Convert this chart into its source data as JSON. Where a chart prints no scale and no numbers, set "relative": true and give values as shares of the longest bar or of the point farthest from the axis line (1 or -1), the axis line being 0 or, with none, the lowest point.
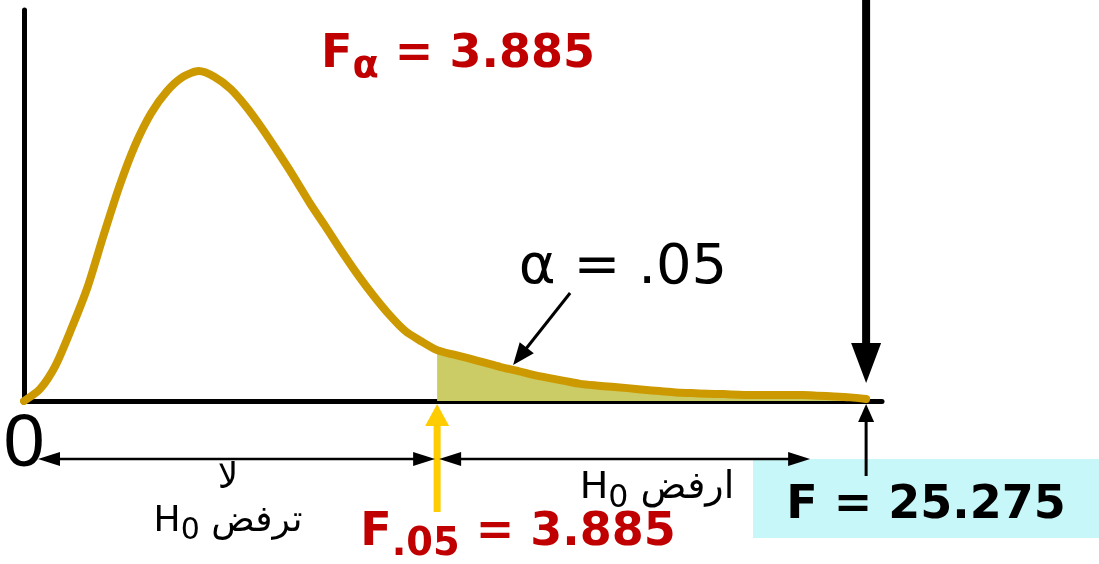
{
  "chart_data": {
    "type": "line",
    "relative": true,
    "grid": false,
    "marker": "none",
    "categories": [
      null,
      null,
      null,
      null,
      null,
      null,
      null,
      null,
      null,
      null,
      null,
      null,
      null,
      null,
      null,
      null,
      null,
      null,
      null,
      null,
      null,
      null,
      null,
      null,
      null,
      null,
      null,
      null,
      null,
      null,
      null,
      null,
      null,
      null,
      null,
      null,
      null,
      null,
      null,
      null,
      null,
      null,
      null,
      null,
      null,
      null,
      null,
      null,
      null,
      null,
      null,
      null,
      null,
      null,
      null
    ],
    "series": [
      {
        "color": "#cc9900",
        "values": [
          0,
          0.036,
          0.109,
          0.221,
          0.345,
          0.501,
          0.65,
          0.776,
          0.872,
          0.939,
          0.982,
          1,
          0.982,
          0.946,
          0.891,
          0.825,
          0.753,
          0.678,
          0.599,
          0.527,
          0.453,
          0.383,
          0.319,
          0.261,
          0.212,
          0.181,
          0.154,
          0.141,
          0.129,
          0.116,
          0.103,
          0.092,
          0.08,
          0.07,
          0.061,
          0.052,
          0.047,
          0.043,
          0.039,
          0.034,
          0.03,
          0.026,
          0.024,
          0.022,
          0.021,
          0.019,
          0.018,
          0.018,
          0.018,
          0.018,
          0.016,
          0.014,
          0.011,
          0.006,
          null
        ]
      },
      {
        "type": "area",
        "color": "#cccc66",
        "values": [
          null,
          null,
          null,
          null,
          null,
          null,
          null,
          null,
          null,
          null,
          null,
          null,
          null,
          null,
          null,
          null,
          null,
          null,
          null,
          null,
          null,
          null,
          null,
          null,
          null,
          null,
          0.154,
          0.141,
          0.129,
          0.116,
          0.103,
          0.092,
          0.08,
          0.07,
          0.061,
          0.052,
          0.047,
          0.043,
          0.039,
          0.034,
          0.03,
          0.026,
          0.024,
          0.022,
          0.021,
          0.019,
          0.018,
          0.018,
          0.018,
          0.018,
          0.016,
          0.014,
          0.011,
          0.006,
          null
        ]
      }
    ],
    "annotations": [
      "F$_{α}$ = 3.885",
      "α = .05",
      "لا\nترفض H$_{0}$",
      "ارفض H$_{0}$",
      "F$_{.05}$ = 3.885",
      "F = 25.275",
      "0"
    ]
  }
}
